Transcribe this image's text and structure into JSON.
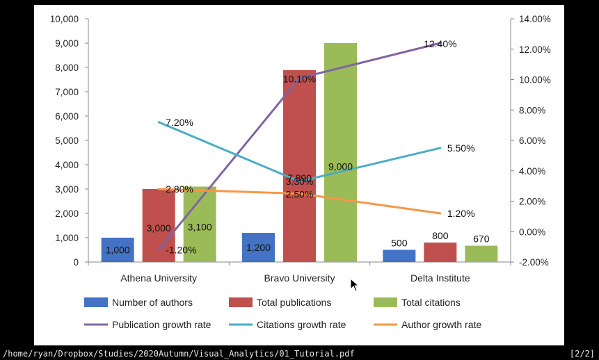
{
  "chart_data": {
    "type": "bar",
    "categories": [
      "Athena University",
      "Bravo University",
      "Delta Institute"
    ],
    "series": [
      {
        "name": "Number of authors",
        "kind": "bar",
        "axis": "left",
        "color": "#4472c4",
        "values": [
          1000,
          1200,
          500
        ],
        "labels": [
          "1,000",
          "1,200",
          "500"
        ]
      },
      {
        "name": "Total publications",
        "kind": "bar",
        "axis": "left",
        "color": "#c0504d",
        "values": [
          3000,
          7890,
          800
        ],
        "labels": [
          "3,000",
          "7,890",
          "800"
        ]
      },
      {
        "name": "Total citations",
        "kind": "bar",
        "axis": "left",
        "color": "#9bbb59",
        "values": [
          3100,
          9000,
          670
        ],
        "labels": [
          "3,100",
          "9,000",
          "670"
        ]
      },
      {
        "name": "Publication growth rate",
        "kind": "line",
        "axis": "right",
        "color": "#8064a2",
        "values": [
          -1.2,
          10.1,
          12.4
        ],
        "labels": [
          "-1.20%",
          "10.10%",
          "12.40%"
        ]
      },
      {
        "name": "Citations growth rate",
        "kind": "line",
        "axis": "right",
        "color": "#4bacc6",
        "values": [
          7.2,
          3.3,
          5.5
        ],
        "labels": [
          "7.20%",
          "3.30%",
          "5.50%"
        ]
      },
      {
        "name": "Author growth rate",
        "kind": "line",
        "axis": "right",
        "color": "#f79646",
        "values": [
          2.8,
          2.5,
          1.2
        ],
        "labels": [
          "2.80%",
          "2.50%",
          "1.20%"
        ]
      }
    ],
    "y_left": {
      "min": 0,
      "max": 10000,
      "ticks": [
        "0",
        "1,000",
        "2,000",
        "3,000",
        "4,000",
        "5,000",
        "6,000",
        "7,000",
        "8,000",
        "9,000",
        "10,000"
      ]
    },
    "y_right": {
      "min": -2,
      "max": 14,
      "ticks": [
        "-2.00%",
        "0.00%",
        "2.00%",
        "4.00%",
        "6.00%",
        "8.00%",
        "10.00%",
        "12.00%",
        "14.00%"
      ]
    },
    "grid": false,
    "legend_position": "bottom"
  },
  "status_bar": {
    "path": "/home/ryan/Dropbox/Studies/2020Autumn/Visual_Analytics/01_Tutorial.pdf",
    "page": "[2/2]"
  },
  "cursor_icon": "mouse-pointer-icon"
}
